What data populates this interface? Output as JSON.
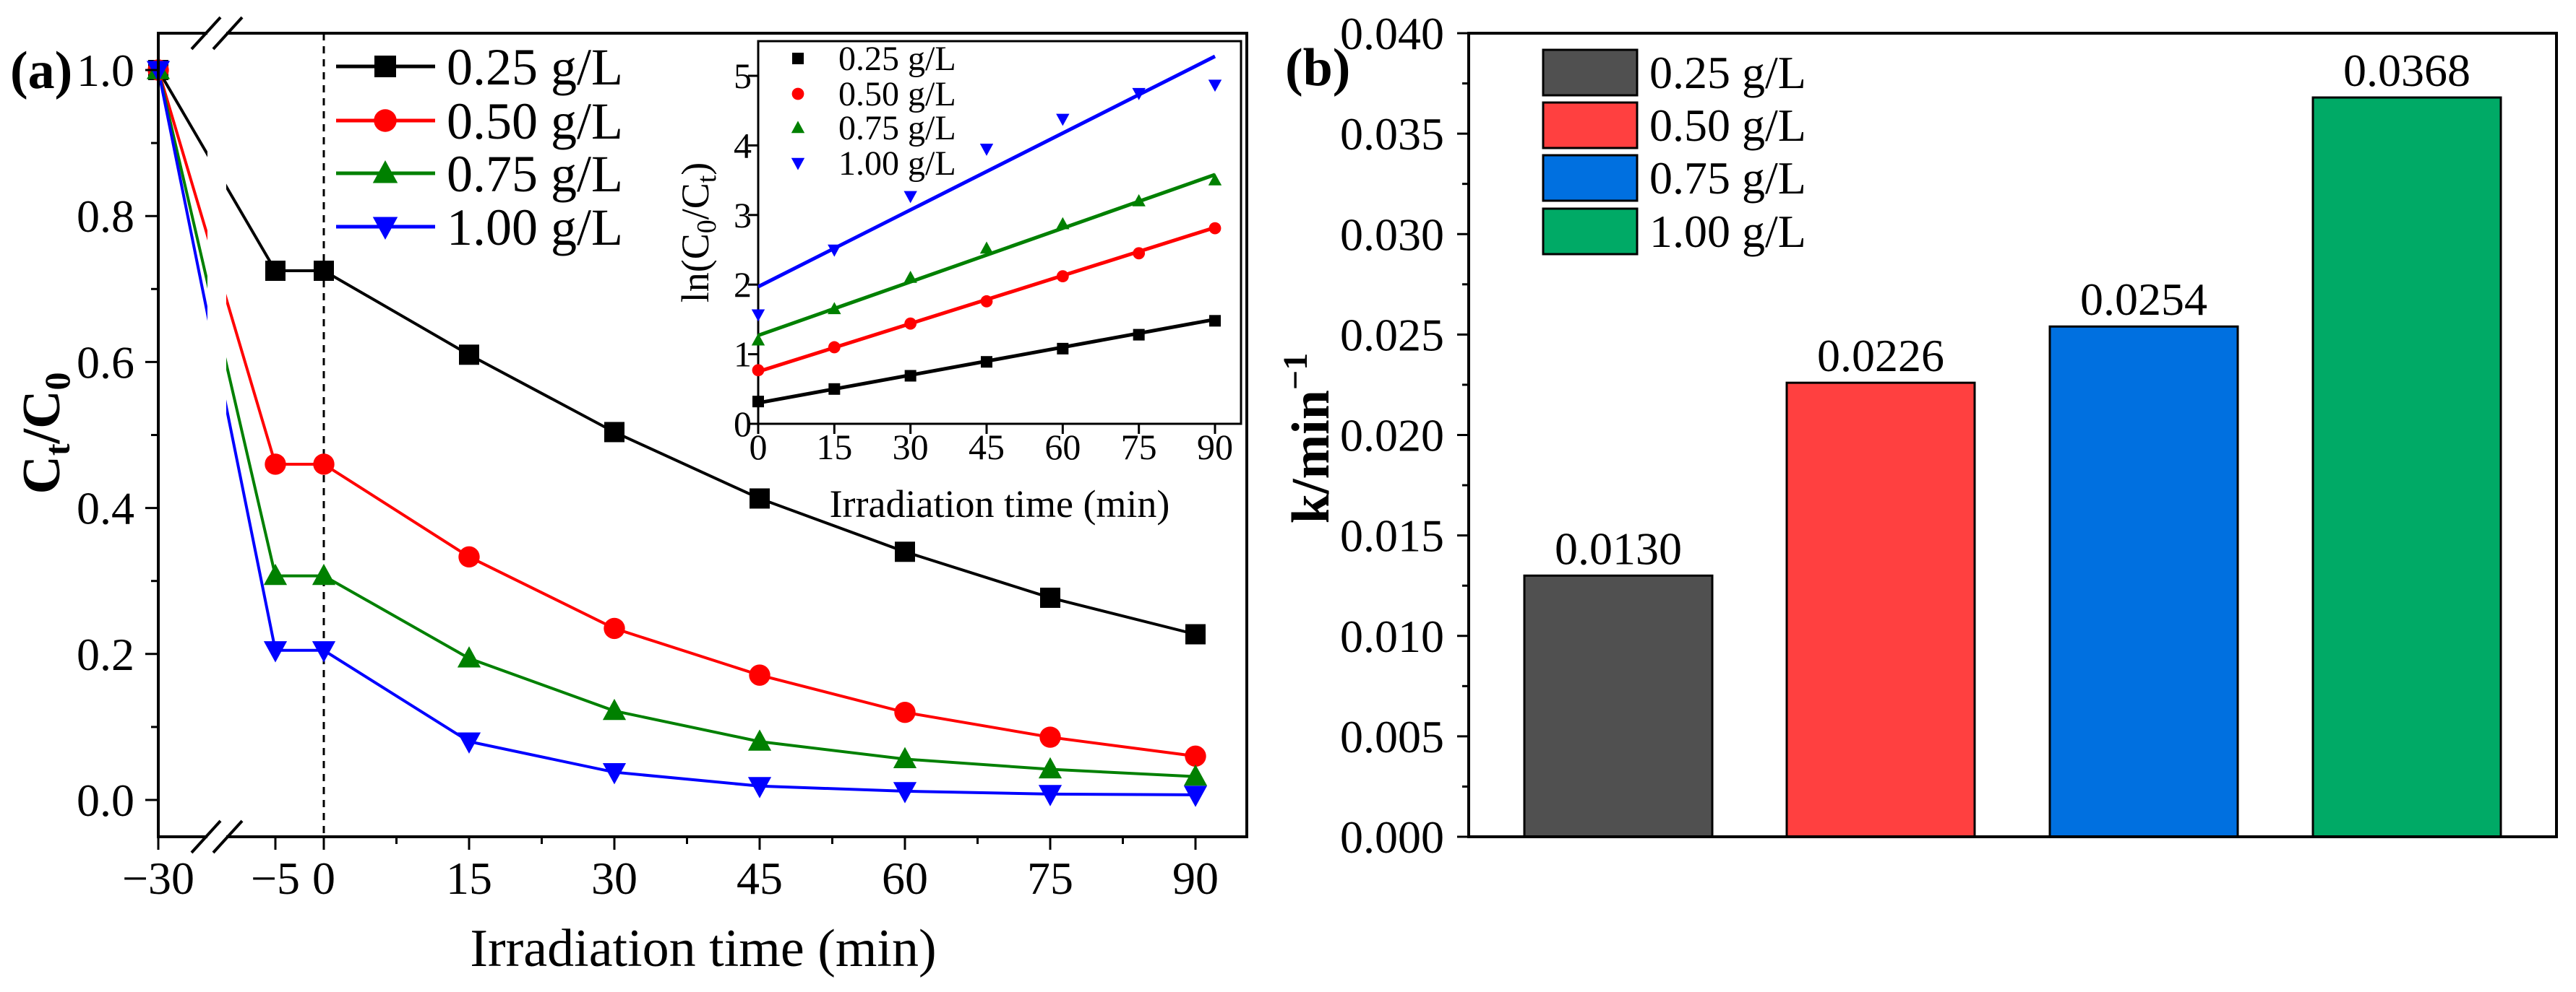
{
  "panel_labels": {
    "a": "(a)",
    "b": "(b)"
  },
  "chart_data": [
    {
      "id": "main",
      "type": "line",
      "title": "",
      "xlabel": "Irradiation time (min)",
      "ylabel_main": "C",
      "ylabel_sub1": "t",
      "ylabel_mid": "/C",
      "ylabel_sub2": "0",
      "x": [
        -30,
        -5,
        0,
        15,
        30,
        45,
        60,
        75,
        90
      ],
      "xticks": [
        "−30",
        "−5",
        "0",
        "15",
        "30",
        "45",
        "60",
        "75",
        "90"
      ],
      "yticks": [
        "0.0",
        "0.2",
        "0.4",
        "0.6",
        "0.8",
        "1.0"
      ],
      "ytick_values": [
        0,
        0.2,
        0.4,
        0.6,
        0.8,
        1.0
      ],
      "ylim": [
        -0.05,
        1.05
      ],
      "axis_break": "between -30 and -5",
      "dashed_line_at_x": 0,
      "legend_position": "top-left",
      "series": [
        {
          "name": "0.25 g/L",
          "color": "#000000",
          "marker": "square",
          "values": [
            1.0,
            0.725,
            0.725,
            0.61,
            0.504,
            0.413,
            0.34,
            0.277,
            0.227
          ]
        },
        {
          "name": "0.50 g/L",
          "color": "#ff0000",
          "marker": "circle",
          "values": [
            1.0,
            0.46,
            0.46,
            0.333,
            0.235,
            0.171,
            0.12,
            0.086,
            0.06
          ]
        },
        {
          "name": "0.75 g/L",
          "color": "#008000",
          "marker": "triangle-up",
          "values": [
            1.0,
            0.307,
            0.307,
            0.194,
            0.122,
            0.08,
            0.056,
            0.042,
            0.032
          ]
        },
        {
          "name": "1.00 g/L",
          "color": "#0000ff",
          "marker": "triangle-down",
          "values": [
            1.0,
            0.205,
            0.205,
            0.08,
            0.038,
            0.019,
            0.012,
            0.008,
            0.007
          ]
        }
      ]
    },
    {
      "id": "inset",
      "type": "scatter",
      "title": "",
      "xlabel": "Irradiation time (min)",
      "ylabel_pre": "ln(C",
      "ylabel_sub1": "0",
      "ylabel_mid": "/C",
      "ylabel_sub2": "t",
      "ylabel_post": ")",
      "x": [
        0,
        15,
        30,
        45,
        60,
        75,
        90
      ],
      "xticks": [
        "0",
        "15",
        "30",
        "45",
        "60",
        "75",
        "90"
      ],
      "yticks": [
        "0",
        "1",
        "2",
        "3",
        "4",
        "5"
      ],
      "xlim": [
        0,
        95
      ],
      "ylim": [
        0,
        5.5
      ],
      "legend_position": "top-left",
      "series": [
        {
          "name": "0.25 g/L",
          "color": "#000000",
          "marker": "square",
          "values": [
            0.32,
            0.5,
            0.69,
            0.89,
            1.08,
            1.28,
            1.48
          ],
          "fit": [
            0.3,
            1.5
          ]
        },
        {
          "name": "0.50 g/L",
          "color": "#ff0000",
          "marker": "circle",
          "values": [
            0.77,
            1.1,
            1.44,
            1.76,
            2.12,
            2.45,
            2.81
          ],
          "fit": [
            0.75,
            2.82
          ]
        },
        {
          "name": "0.75 g/L",
          "color": "#008000",
          "marker": "triangle-up",
          "values": [
            1.2,
            1.65,
            2.1,
            2.52,
            2.87,
            3.2,
            3.5
          ],
          "fit": [
            1.27,
            3.58
          ]
        },
        {
          "name": "1.00 g/L",
          "color": "#0000ff",
          "marker": "triangle-down",
          "values": [
            1.57,
            2.5,
            3.27,
            3.95,
            4.38,
            4.75,
            4.87
          ],
          "fit": [
            1.97,
            5.28
          ]
        }
      ]
    },
    {
      "id": "rate",
      "type": "bar",
      "title": "",
      "xlabel": "",
      "ylabel": "k/min",
      "ylabel_sup": "−1",
      "categories": [
        "0.25 g/L",
        "0.50 g/L",
        "0.75 g/L",
        "1.00 g/L"
      ],
      "values": [
        0.013,
        0.0226,
        0.0254,
        0.0368
      ],
      "value_labels": [
        "0.0130",
        "0.0226",
        "0.0254",
        "0.0368"
      ],
      "colors": [
        "#505050",
        "#ff4040",
        "#0070e0",
        "#00aa66"
      ],
      "yticks": [
        "0.000",
        "0.005",
        "0.010",
        "0.015",
        "0.020",
        "0.025",
        "0.030",
        "0.035",
        "0.040"
      ],
      "ylim": [
        0,
        0.04
      ],
      "legend_position": "top-left"
    }
  ]
}
